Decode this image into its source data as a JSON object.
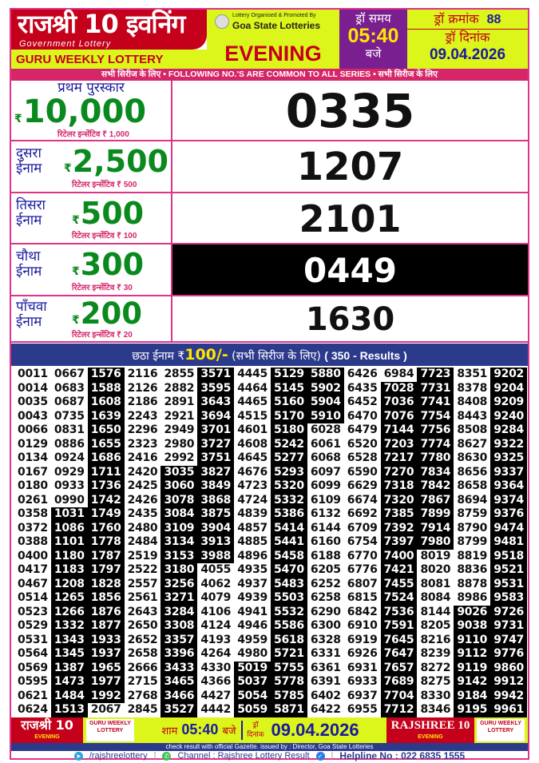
{
  "header": {
    "title": "राजश्री 10 इवनिंग",
    "subtitle": "Government Lottery",
    "guru": "GURU WEEKLY LOTTERY",
    "organised_by": "Lottery Organised & Promoted By",
    "organiser": "Goa State Lotteries",
    "session": "EVENING",
    "draw_time_label": "ड्रॉ समय",
    "draw_time": "05:40",
    "draw_time_suffix": "बजे",
    "draw_no_label": "ड्रॉ क्रमांक",
    "draw_no": "88",
    "draw_date_label": "ड्रॉ दिनांक",
    "draw_date": "09.04.2026"
  },
  "banner": "सभी सिरीज के लिए  •  FOLLOWING NO.'S ARE COMMON TO ALL SERIES  • सभी सिरीज के लिए",
  "currency": "₹",
  "prizes": [
    {
      "label": "प्रथम पुरस्कार",
      "amount": "10,000",
      "incentive": "रिटेलर इन्सेंटिव ₹ 1,000",
      "number": "0335"
    },
    {
      "label": "दुसरा ईनाम",
      "amount": "2,500",
      "incentive": "रिटेलर इन्सेंटिव ₹ 500",
      "number": "1207"
    },
    {
      "label": "तिसरा ईनाम",
      "amount": "500",
      "incentive": "रिटेलर इन्सेंटिव ₹ 100",
      "number": "2101"
    },
    {
      "label": "चौथा ईनाम",
      "amount": "300",
      "incentive": "रिटेलर इन्सेंटिव ₹ 30",
      "number": "0449",
      "highlight": true
    },
    {
      "label": "पाँचवा ईनाम",
      "amount": "200",
      "incentive": "रिटेलर इन्सेंटिव ₹ 20",
      "number": "1630"
    }
  ],
  "sixth": {
    "label": "छठा ईनाम ₹",
    "amount": "100/-",
    "series": " (सभी सिरीज के लिए) ",
    "results": "( 350 - Results )"
  },
  "sixth_columns": [
    {
      "dark": [],
      "numbers": [
        "0011",
        "0014",
        "0035",
        "0043",
        "0066",
        "0129",
        "0134",
        "0167",
        "0180",
        "0261",
        "0358",
        "0372",
        "0388",
        "0400",
        "0417",
        "0467",
        "0514",
        "0523",
        "0529",
        "0531",
        "0564",
        "0569",
        "0595",
        "0621",
        "0624"
      ]
    },
    {
      "dark": [
        10,
        24
      ],
      "numbers": [
        "0667",
        "0683",
        "0687",
        "0735",
        "0831",
        "0886",
        "0924",
        "0929",
        "0933",
        "0990",
        "1031",
        "1086",
        "1101",
        "1180",
        "1183",
        "1208",
        "1265",
        "1266",
        "1332",
        "1343",
        "1345",
        "1387",
        "1473",
        "1484",
        "1513"
      ]
    },
    {
      "dark": [
        0,
        23
      ],
      "numbers": [
        "1576",
        "1588",
        "1608",
        "1639",
        "1650",
        "1655",
        "1686",
        "1711",
        "1736",
        "1742",
        "1749",
        "1760",
        "1778",
        "1787",
        "1797",
        "1828",
        "1856",
        "1876",
        "1877",
        "1933",
        "1937",
        "1965",
        "1977",
        "1992",
        "2067"
      ]
    },
    {
      "dark": [],
      "numbers": [
        "2116",
        "2126",
        "2186",
        "2243",
        "2296",
        "2323",
        "2416",
        "2420",
        "2425",
        "2426",
        "2435",
        "2480",
        "2484",
        "2519",
        "2522",
        "2557",
        "2561",
        "2643",
        "2650",
        "2652",
        "2658",
        "2666",
        "2715",
        "2768",
        "2845"
      ]
    },
    {
      "dark": [
        7,
        24
      ],
      "numbers": [
        "2855",
        "2882",
        "2891",
        "2921",
        "2949",
        "2980",
        "2992",
        "3035",
        "3060",
        "3078",
        "3084",
        "3109",
        "3134",
        "3153",
        "3180",
        "3256",
        "3271",
        "3284",
        "3308",
        "3357",
        "3396",
        "3433",
        "3465",
        "3466",
        "3527"
      ]
    },
    {
      "dark": [
        0,
        13
      ],
      "numbers": [
        "3571",
        "3595",
        "3643",
        "3694",
        "3701",
        "3727",
        "3751",
        "3827",
        "3849",
        "3868",
        "3875",
        "3904",
        "3913",
        "3988",
        "4055",
        "4062",
        "4079",
        "4106",
        "4124",
        "4193",
        "4264",
        "4330",
        "4366",
        "4427",
        "4442"
      ]
    },
    {
      "dark": [
        21,
        24
      ],
      "numbers": [
        "4445",
        "4464",
        "4465",
        "4515",
        "4601",
        "4608",
        "4645",
        "4676",
        "4723",
        "4724",
        "4839",
        "4857",
        "4885",
        "4896",
        "4935",
        "4937",
        "4939",
        "4941",
        "4946",
        "4959",
        "4980",
        "5019",
        "5037",
        "5054",
        "5059"
      ]
    },
    {
      "dark": [
        0,
        24
      ],
      "numbers": [
        "5129",
        "5145",
        "5160",
        "5170",
        "5180",
        "5242",
        "5277",
        "5293",
        "5320",
        "5332",
        "5386",
        "5414",
        "5441",
        "5458",
        "5470",
        "5483",
        "5503",
        "5532",
        "5586",
        "5618",
        "5721",
        "5755",
        "5778",
        "5785",
        "5871"
      ]
    },
    {
      "dark": [
        0,
        3
      ],
      "numbers": [
        "5880",
        "5902",
        "5904",
        "5910",
        "6028",
        "6061",
        "6068",
        "6097",
        "6099",
        "6109",
        "6132",
        "6144",
        "6160",
        "6188",
        "6205",
        "6252",
        "6258",
        "6290",
        "6300",
        "6328",
        "6331",
        "6361",
        "6391",
        "6402",
        "6422"
      ]
    },
    {
      "dark": [],
      "numbers": [
        "6426",
        "6435",
        "6452",
        "6470",
        "6479",
        "6520",
        "6528",
        "6590",
        "6629",
        "6674",
        "6692",
        "6709",
        "6754",
        "6770",
        "6776",
        "6807",
        "6815",
        "6842",
        "6910",
        "6919",
        "6926",
        "6931",
        "6933",
        "6937",
        "6955"
      ]
    },
    {
      "dark": [
        1,
        24
      ],
      "numbers": [
        "6984",
        "7028",
        "7036",
        "7076",
        "7144",
        "7203",
        "7217",
        "7270",
        "7318",
        "7320",
        "7385",
        "7392",
        "7397",
        "7400",
        "7421",
        "7455",
        "7524",
        "7536",
        "7591",
        "7645",
        "7647",
        "7657",
        "7689",
        "7704",
        "7712"
      ]
    },
    {
      "dark": [
        0,
        12
      ],
      "numbers": [
        "7723",
        "7731",
        "7741",
        "7754",
        "7756",
        "7774",
        "7780",
        "7834",
        "7842",
        "7867",
        "7899",
        "7914",
        "7980",
        "8019",
        "8020",
        "8081",
        "8084",
        "8144",
        "8205",
        "8216",
        "8239",
        "8272",
        "8275",
        "8330",
        "8346"
      ]
    },
    {
      "dark": [
        17,
        24
      ],
      "numbers": [
        "8351",
        "8378",
        "8408",
        "8443",
        "8508",
        "8627",
        "8630",
        "8656",
        "8658",
        "8694",
        "8759",
        "8790",
        "8799",
        "8819",
        "8836",
        "8878",
        "8986",
        "9026",
        "9038",
        "9110",
        "9112",
        "9119",
        "9142",
        "9184",
        "9195"
      ]
    },
    {
      "dark": [
        0,
        24
      ],
      "numbers": [
        "9202",
        "9204",
        "9209",
        "9240",
        "9284",
        "9322",
        "9325",
        "9337",
        "9364",
        "9374",
        "9376",
        "9474",
        "9481",
        "9518",
        "9521",
        "9531",
        "9583",
        "9726",
        "9731",
        "9747",
        "9776",
        "9860",
        "9912",
        "9942",
        "9961"
      ]
    }
  ],
  "footer": {
    "logo1": "राजश्री 10",
    "logo1_sub": "EVENING",
    "guru": "GURU WEEKLY LOTTERY",
    "time_prefix": "शाम",
    "time": "05:40",
    "time_suffix": "बजे",
    "date_label": "ड्रॉ दिनांक",
    "date": "09.04.2026",
    "logo2": "RAJSHREE 10",
    "logo2_sub": "EVENING",
    "gazette": "check result with official Gazette. issued by : Director, Goa State Lotteries",
    "telegram": "/rajshreelottery",
    "channel": "Channel : Rajshree Lottery Result",
    "helpline": "Helpline No : 022 6835 1555"
  },
  "colors": {
    "red": "#c4001a",
    "lime": "#dcf51a",
    "purple": "#7a1f8f",
    "pink": "#d6266a",
    "navy": "#2c3a8c",
    "green": "#0a8a1e"
  }
}
